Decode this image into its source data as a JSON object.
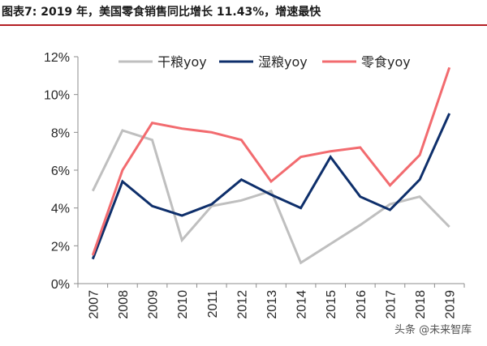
{
  "header": {
    "title": "图表7:   2019 年，美国零食销售同比增长 11.43%，增速最快"
  },
  "watermark": "头条 @未来智库",
  "chart_data": {
    "type": "line",
    "title": "",
    "xlabel": "",
    "ylabel": "",
    "categories": [
      "2007",
      "2008",
      "2009",
      "2010",
      "2011",
      "2012",
      "2013",
      "2014",
      "2015",
      "2016",
      "2017",
      "2018",
      "2019"
    ],
    "ylim": [
      0,
      12
    ],
    "yticks": [
      0,
      2,
      4,
      6,
      8,
      10,
      12
    ],
    "ytick_labels": [
      "0%",
      "2%",
      "4%",
      "6%",
      "8%",
      "10%",
      "12%"
    ],
    "grid": false,
    "legend_position": "top",
    "series": [
      {
        "name": "干粮yoy",
        "color": "#bfbfbf",
        "values": [
          4.9,
          8.1,
          7.6,
          2.3,
          4.1,
          4.4,
          4.9,
          1.1,
          2.1,
          3.1,
          4.2,
          4.6,
          3.0
        ]
      },
      {
        "name": "湿粮yoy",
        "color": "#0e2f6b",
        "values": [
          1.3,
          5.4,
          4.1,
          3.6,
          4.2,
          5.5,
          4.7,
          4.0,
          6.7,
          4.6,
          3.9,
          5.5,
          9.0
        ]
      },
      {
        "name": "零食yoy",
        "color": "#f26b6f",
        "values": [
          1.5,
          6.0,
          8.5,
          8.2,
          8.0,
          7.6,
          5.4,
          6.7,
          7.0,
          7.2,
          5.2,
          6.8,
          11.43
        ]
      }
    ]
  }
}
